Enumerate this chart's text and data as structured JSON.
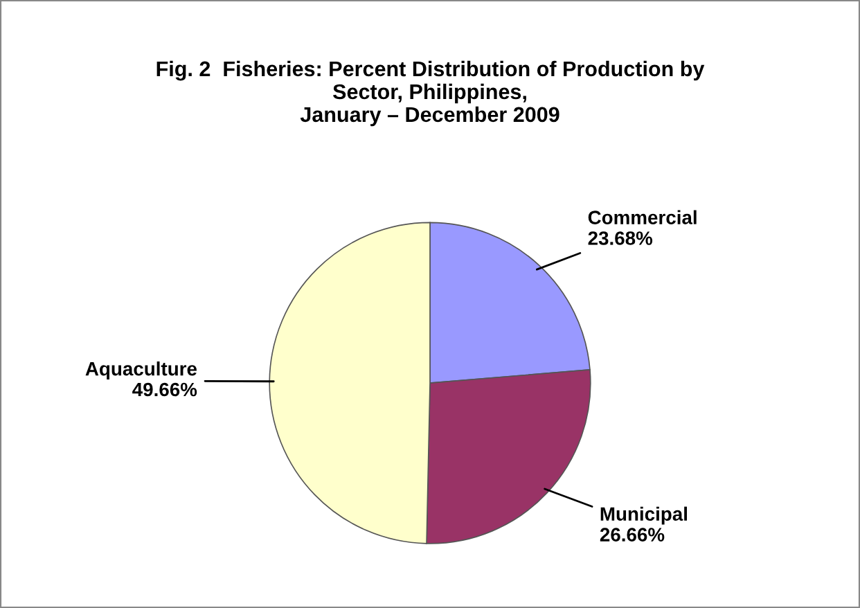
{
  "chart_data": {
    "type": "pie",
    "title": "Fig. 2  Fisheries: Percent Distribution of Production by\nSector, Philippines,\nJanuary – December 2009",
    "categories": [
      "Commercial",
      "Municipal",
      "Aquaculture"
    ],
    "values": [
      23.68,
      26.66,
      49.66
    ],
    "value_labels": [
      "23.68%",
      "26.66%",
      "49.66%"
    ],
    "colors": [
      "#9999ff",
      "#993366",
      "#ffffcc"
    ],
    "legend": false
  }
}
